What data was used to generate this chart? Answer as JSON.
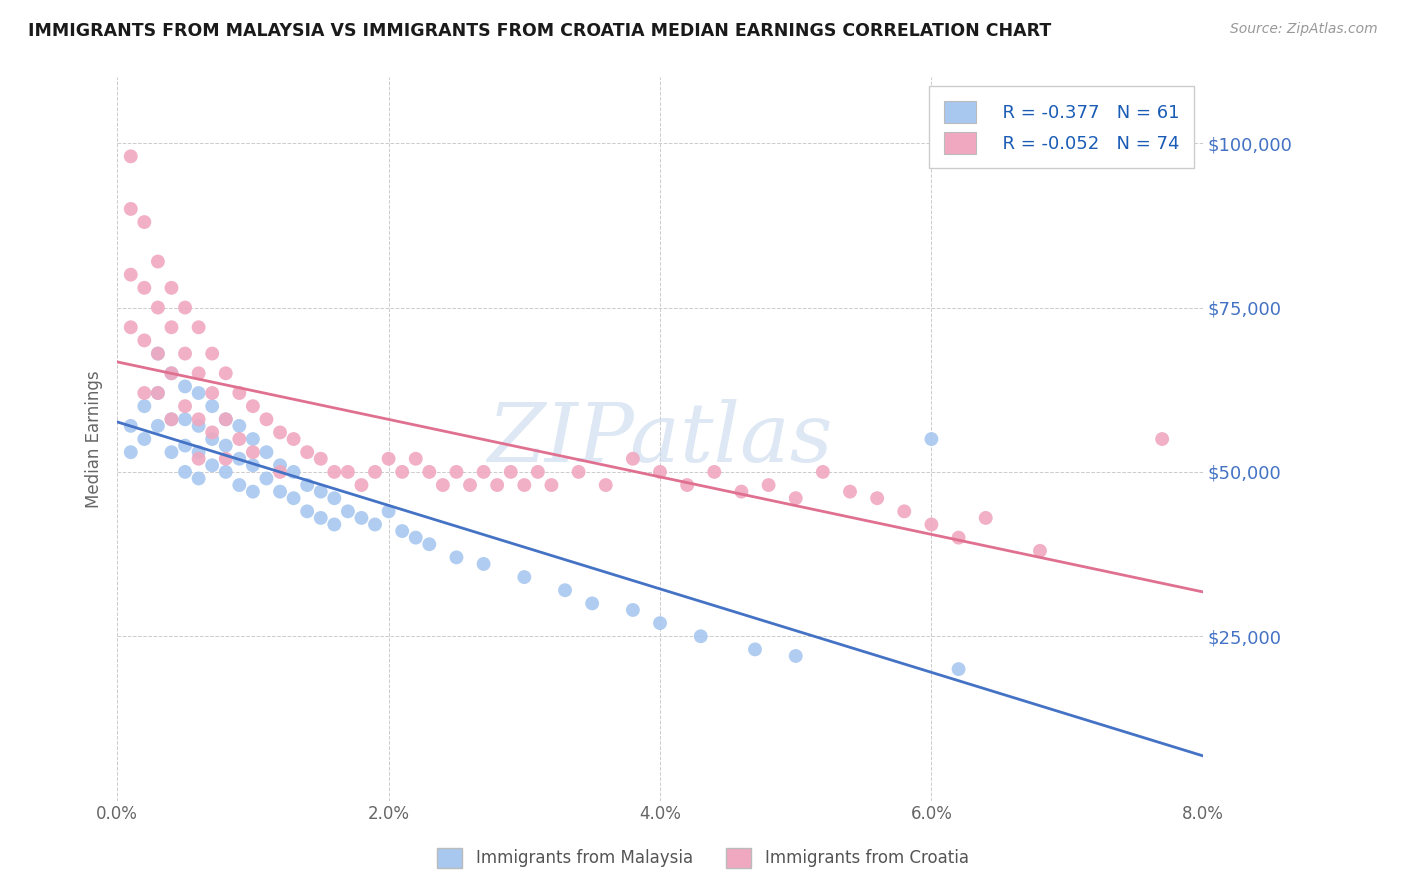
{
  "title": "IMMIGRANTS FROM MALAYSIA VS IMMIGRANTS FROM CROATIA MEDIAN EARNINGS CORRELATION CHART",
  "source": "Source: ZipAtlas.com",
  "ylabel": "Median Earnings",
  "xlim": [
    0.0,
    0.08
  ],
  "ylim": [
    0,
    110000
  ],
  "yticks": [
    0,
    25000,
    50000,
    75000,
    100000
  ],
  "ytick_labels": [
    "",
    "$25,000",
    "$50,000",
    "$75,000",
    "$100,000"
  ],
  "xtick_labels": [
    "0.0%",
    "2.0%",
    "4.0%",
    "6.0%",
    "8.0%"
  ],
  "xticks": [
    0.0,
    0.02,
    0.04,
    0.06,
    0.08
  ],
  "legend1_label": "R = -0.377   N = 61",
  "legend2_label": "R = -0.052   N = 74",
  "scatter1_color": "#a8c8f0",
  "scatter2_color": "#f0a8c0",
  "line1_color": "#4472c4",
  "line2_color": "#e07090",
  "watermark": "ZIPatlas",
  "watermark_color": "#c8d8ee",
  "background_color": "#ffffff",
  "legend_label1": "Immigrants from Malaysia",
  "legend_label2": "Immigrants from Croatia",
  "malaysia_x": [
    0.001,
    0.001,
    0.002,
    0.002,
    0.003,
    0.003,
    0.003,
    0.004,
    0.004,
    0.004,
    0.005,
    0.005,
    0.005,
    0.005,
    0.006,
    0.006,
    0.006,
    0.006,
    0.007,
    0.007,
    0.007,
    0.008,
    0.008,
    0.008,
    0.009,
    0.009,
    0.009,
    0.01,
    0.01,
    0.01,
    0.011,
    0.011,
    0.012,
    0.012,
    0.013,
    0.013,
    0.014,
    0.014,
    0.015,
    0.015,
    0.016,
    0.016,
    0.017,
    0.018,
    0.019,
    0.02,
    0.021,
    0.022,
    0.023,
    0.025,
    0.027,
    0.03,
    0.033,
    0.035,
    0.038,
    0.04,
    0.043,
    0.047,
    0.05,
    0.06,
    0.062
  ],
  "malaysia_y": [
    57000,
    53000,
    60000,
    55000,
    68000,
    62000,
    57000,
    65000,
    58000,
    53000,
    63000,
    58000,
    54000,
    50000,
    62000,
    57000,
    53000,
    49000,
    60000,
    55000,
    51000,
    58000,
    54000,
    50000,
    57000,
    52000,
    48000,
    55000,
    51000,
    47000,
    53000,
    49000,
    51000,
    47000,
    50000,
    46000,
    48000,
    44000,
    47000,
    43000,
    46000,
    42000,
    44000,
    43000,
    42000,
    44000,
    41000,
    40000,
    39000,
    37000,
    36000,
    34000,
    32000,
    30000,
    29000,
    27000,
    25000,
    23000,
    22000,
    55000,
    20000
  ],
  "croatia_x": [
    0.001,
    0.001,
    0.001,
    0.001,
    0.002,
    0.002,
    0.002,
    0.002,
    0.003,
    0.003,
    0.003,
    0.003,
    0.004,
    0.004,
    0.004,
    0.004,
    0.005,
    0.005,
    0.005,
    0.006,
    0.006,
    0.006,
    0.006,
    0.007,
    0.007,
    0.007,
    0.008,
    0.008,
    0.008,
    0.009,
    0.009,
    0.01,
    0.01,
    0.011,
    0.012,
    0.012,
    0.013,
    0.014,
    0.015,
    0.016,
    0.017,
    0.018,
    0.019,
    0.02,
    0.021,
    0.022,
    0.023,
    0.024,
    0.025,
    0.026,
    0.027,
    0.028,
    0.029,
    0.03,
    0.031,
    0.032,
    0.034,
    0.036,
    0.038,
    0.04,
    0.042,
    0.044,
    0.046,
    0.048,
    0.05,
    0.052,
    0.054,
    0.056,
    0.058,
    0.06,
    0.062,
    0.064,
    0.068,
    0.077
  ],
  "croatia_y": [
    98000,
    90000,
    80000,
    72000,
    88000,
    78000,
    70000,
    62000,
    82000,
    75000,
    68000,
    62000,
    78000,
    72000,
    65000,
    58000,
    75000,
    68000,
    60000,
    72000,
    65000,
    58000,
    52000,
    68000,
    62000,
    56000,
    65000,
    58000,
    52000,
    62000,
    55000,
    60000,
    53000,
    58000,
    56000,
    50000,
    55000,
    53000,
    52000,
    50000,
    50000,
    48000,
    50000,
    52000,
    50000,
    52000,
    50000,
    48000,
    50000,
    48000,
    50000,
    48000,
    50000,
    48000,
    50000,
    48000,
    50000,
    48000,
    52000,
    50000,
    48000,
    50000,
    47000,
    48000,
    46000,
    50000,
    47000,
    46000,
    44000,
    42000,
    40000,
    43000,
    38000,
    55000
  ]
}
